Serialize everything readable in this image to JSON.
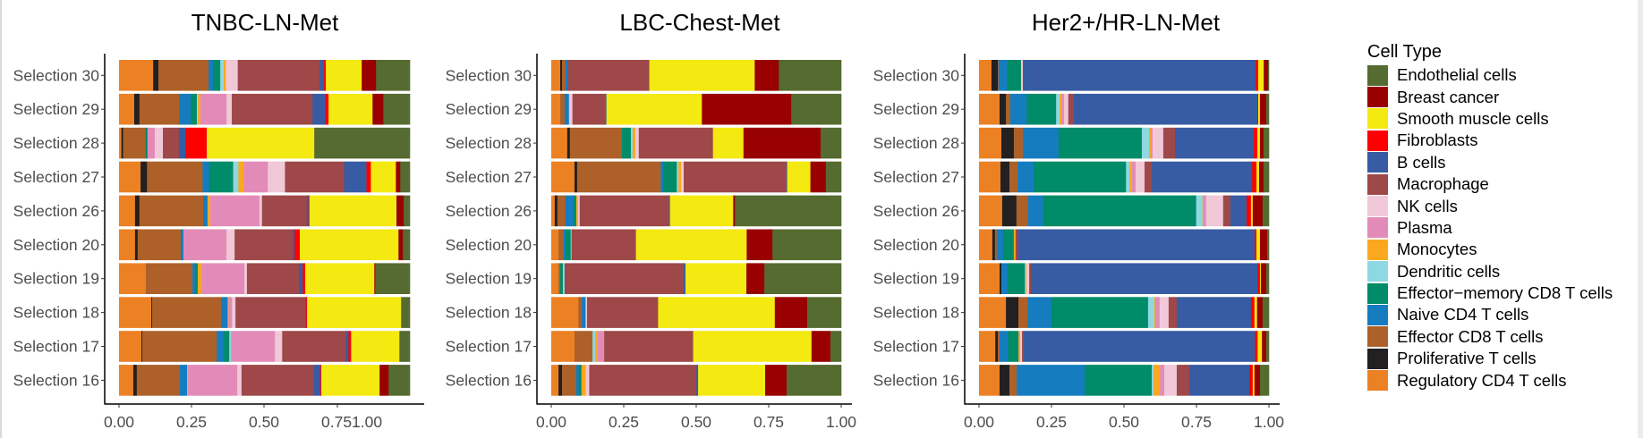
{
  "legend": {
    "title": "Cell Type",
    "items": [
      {
        "key": "endo",
        "label": "Endothelial cells",
        "color": "#556B2F"
      },
      {
        "key": "breast",
        "label": "Breast cancer",
        "color": "#990000"
      },
      {
        "key": "smooth",
        "label": "Smooth muscle cells",
        "color": "#F4E911"
      },
      {
        "key": "fib",
        "label": "Fibroblasts",
        "color": "#FF0000"
      },
      {
        "key": "bcell",
        "label": "B cells",
        "color": "#375CA3"
      },
      {
        "key": "macro",
        "label": "Macrophage",
        "color": "#9E4849"
      },
      {
        "key": "nk",
        "label": "NK cells",
        "color": "#F0C8D8"
      },
      {
        "key": "plasma",
        "label": "Plasma",
        "color": "#E38BB8"
      },
      {
        "key": "mono",
        "label": "Monocytes",
        "color": "#FCA81E"
      },
      {
        "key": "dend",
        "label": "Dendritic cells",
        "color": "#8ED8E2"
      },
      {
        "key": "em",
        "label": "Effector−memory CD8 T cells",
        "color": "#008B69"
      },
      {
        "key": "naive",
        "label": "Naive CD4 T cells",
        "color": "#167CC0"
      },
      {
        "key": "eff",
        "label": "Effector CD8 T cells",
        "color": "#AD6129"
      },
      {
        "key": "prolif",
        "label": "Proliferative T cells",
        "color": "#222020"
      },
      {
        "key": "reg",
        "label": "Regulatory CD4 T cells",
        "color": "#EC8124"
      }
    ]
  },
  "chart_data": [
    {
      "type": "bar",
      "orientation": "horizontal",
      "stacked": true,
      "title": "TNBC-LN-Met",
      "xlabel": "",
      "ylabel": "",
      "xlim": [
        0,
        1
      ],
      "x_tick_labels": [
        "0.00",
        "0.25",
        "0.50",
        "0.751.00"
      ],
      "stack_order": [
        "reg",
        "prolif",
        "eff",
        "naive",
        "em",
        "dend",
        "mono",
        "plasma",
        "nk",
        "macro",
        "bcell",
        "fib",
        "smooth",
        "breast",
        "endo"
      ],
      "categories": [
        "Selection 30",
        "Selection 29",
        "Selection 28",
        "Selection 27",
        "Selection 26",
        "Selection 20",
        "Selection 19",
        "Selection 18",
        "Selection 17",
        "Selection 16"
      ],
      "rows": [
        {
          "reg": 0.117,
          "prolif": 0.018,
          "eff": 0.172,
          "naive": 0.015,
          "em": 0.025,
          "dend": 0.012,
          "mono": 0.007,
          "plasma": 0,
          "nk": 0.041,
          "macro": 0.281,
          "bcell": 0.015,
          "fib": 0.006,
          "smooth": 0.123,
          "breast": 0.049,
          "endo": 0.116
        },
        {
          "reg": 0.052,
          "prolif": 0.018,
          "eff": 0.136,
          "naive": 0.04,
          "em": 0.021,
          "dend": 0.004,
          "mono": 0.008,
          "plasma": 0.09,
          "nk": 0.018,
          "macro": 0.277,
          "bcell": 0.043,
          "fib": 0.012,
          "smooth": 0.151,
          "breast": 0.037,
          "endo": 0.091
        },
        {
          "reg": 0.008,
          "prolif": 0.006,
          "eff": 0.077,
          "naive": 0,
          "em": 0.007,
          "dend": 0,
          "mono": 0,
          "plasma": 0.025,
          "nk": 0.028,
          "macro": 0.055,
          "bcell": 0.022,
          "fib": 0.074,
          "smooth": 0.37,
          "breast": 0,
          "endo": 0.329
        },
        {
          "reg": 0.074,
          "prolif": 0.022,
          "eff": 0.191,
          "naive": 0.022,
          "em": 0.083,
          "dend": 0.018,
          "mono": 0.018,
          "plasma": 0.083,
          "nk": 0.059,
          "macro": 0.203,
          "bcell": 0.077,
          "fib": 0.015,
          "smooth": 0.086,
          "breast": 0.015,
          "endo": 0.033
        },
        {
          "reg": 0.055,
          "prolif": 0.015,
          "eff": 0.219,
          "naive": 0.015,
          "em": 0,
          "dend": 0,
          "mono": 0.009,
          "plasma": 0.169,
          "nk": 0.009,
          "macro": 0.154,
          "bcell": 0.006,
          "fib": 0.003,
          "smooth": 0.299,
          "breast": 0.025,
          "endo": 0.021
        },
        {
          "reg": 0.055,
          "prolif": 0.009,
          "eff": 0.148,
          "naive": 0.009,
          "em": 0,
          "dend": 0,
          "mono": 0,
          "plasma": 0.148,
          "nk": 0.028,
          "macro": 0.2,
          "bcell": 0.006,
          "fib": 0.018,
          "smooth": 0.339,
          "breast": 0.015,
          "endo": 0.024
        },
        {
          "reg": 0.092,
          "prolif": 0,
          "eff": 0.16,
          "naive": 0.009,
          "em": 0.009,
          "dend": 0,
          "mono": 0.012,
          "plasma": 0.148,
          "nk": 0.009,
          "macro": 0.179,
          "bcell": 0.012,
          "fib": 0.009,
          "smooth": 0.237,
          "breast": 0.003,
          "endo": 0.119
        },
        {
          "reg": 0.111,
          "prolif": 0.003,
          "eff": 0.237,
          "naive": 0.022,
          "em": 0,
          "dend": 0,
          "mono": 0.003,
          "plasma": 0.012,
          "nk": 0.012,
          "macro": 0.24,
          "bcell": 0.003,
          "fib": 0.003,
          "smooth": 0.323,
          "breast": 0,
          "endo": 0.03
        },
        {
          "reg": 0.077,
          "prolif": 0.003,
          "eff": 0.256,
          "naive": 0.025,
          "em": 0.018,
          "dend": 0.006,
          "mono": 0,
          "plasma": 0.151,
          "nk": 0.025,
          "macro": 0.219,
          "bcell": 0.009,
          "fib": 0.009,
          "smooth": 0.166,
          "breast": 0,
          "endo": 0.036
        },
        {
          "reg": 0.049,
          "prolif": 0.012,
          "eff": 0.148,
          "naive": 0.025,
          "em": 0,
          "dend": 0.003,
          "mono": 0,
          "plasma": 0.169,
          "nk": 0.015,
          "macro": 0.249,
          "bcell": 0.022,
          "fib": 0.003,
          "smooth": 0.2,
          "breast": 0.031,
          "endo": 0.073
        }
      ]
    },
    {
      "type": "bar",
      "orientation": "horizontal",
      "stacked": true,
      "title": "LBC-Chest-Met",
      "xlabel": "",
      "ylabel": "",
      "xlim": [
        0,
        1
      ],
      "x_tick_labels": [
        "0.00",
        "0.25",
        "0.50",
        "0.75",
        "1.00"
      ],
      "stack_order": [
        "reg",
        "prolif",
        "eff",
        "naive",
        "em",
        "dend",
        "mono",
        "plasma",
        "nk",
        "macro",
        "bcell",
        "fib",
        "smooth",
        "breast",
        "endo"
      ],
      "categories": [
        "Selection 30",
        "Selection 29",
        "Selection 28",
        "Selection 27",
        "Selection 26",
        "Selection 20",
        "Selection 19",
        "Selection 18",
        "Selection 17",
        "Selection 16"
      ],
      "rows": [
        {
          "reg": 0.031,
          "prolif": 0.006,
          "eff": 0.012,
          "naive": 0.009,
          "em": 0,
          "dend": 0,
          "mono": 0,
          "plasma": 0,
          "nk": 0,
          "macro": 0.28,
          "bcell": 0,
          "fib": 0,
          "smooth": 0.363,
          "breast": 0.083,
          "endo": 0.215
        },
        {
          "reg": 0.031,
          "prolif": 0,
          "eff": 0.015,
          "naive": 0.015,
          "em": 0,
          "dend": 0,
          "mono": 0,
          "plasma": 0,
          "nk": 0.012,
          "macro": 0.114,
          "bcell": 0.003,
          "fib": 0,
          "smooth": 0.329,
          "breast": 0.308,
          "endo": 0.172
        },
        {
          "reg": 0.055,
          "prolif": 0.009,
          "eff": 0.179,
          "naive": 0,
          "em": 0.031,
          "dend": 0.006,
          "mono": 0.009,
          "plasma": 0,
          "nk": 0.012,
          "macro": 0.255,
          "bcell": 0,
          "fib": 0,
          "smooth": 0.105,
          "breast": 0.265,
          "endo": 0.071
        },
        {
          "reg": 0.08,
          "prolif": 0.009,
          "eff": 0.288,
          "naive": 0.009,
          "em": 0.046,
          "dend": 0.006,
          "mono": 0.009,
          "plasma": 0,
          "nk": 0.009,
          "macro": 0.353,
          "bcell": 0.003,
          "fib": 0,
          "smooth": 0.08,
          "breast": 0.053,
          "endo": 0.053
        },
        {
          "reg": 0.012,
          "prolif": 0.009,
          "eff": 0.028,
          "naive": 0.028,
          "em": 0.009,
          "dend": 0,
          "mono": 0.006,
          "plasma": 0,
          "nk": 0.006,
          "macro": 0.308,
          "bcell": 0.003,
          "fib": 0,
          "smooth": 0.218,
          "breast": 0.006,
          "endo": 0.366
        },
        {
          "reg": 0.025,
          "prolif": 0,
          "eff": 0.018,
          "naive": 0.006,
          "em": 0.018,
          "dend": 0.003,
          "mono": 0,
          "plasma": 0,
          "nk": 0,
          "macro": 0.222,
          "bcell": 0,
          "fib": 0,
          "smooth": 0.382,
          "breast": 0.089,
          "endo": 0.237
        },
        {
          "reg": 0.025,
          "prolif": 0,
          "eff": 0.006,
          "naive": 0,
          "em": 0.009,
          "dend": 0.006,
          "mono": 0,
          "plasma": 0,
          "nk": 0,
          "macro": 0.411,
          "bcell": 0.006,
          "fib": 0,
          "smooth": 0.21,
          "breast": 0.062,
          "endo": 0.265
        },
        {
          "reg": 0.093,
          "prolif": 0,
          "eff": 0.012,
          "naive": 0.012,
          "em": 0,
          "dend": 0,
          "mono": 0,
          "plasma": 0.003,
          "nk": 0.003,
          "macro": 0.244,
          "bcell": 0,
          "fib": 0,
          "smooth": 0.401,
          "breast": 0.111,
          "endo": 0.117
        },
        {
          "reg": 0.08,
          "prolif": 0,
          "eff": 0.062,
          "naive": 0,
          "em": 0,
          "dend": 0.009,
          "mono": 0.009,
          "plasma": 0.022,
          "nk": 0,
          "macro": 0.306,
          "bcell": 0,
          "fib": 0,
          "smooth": 0.407,
          "breast": 0.065,
          "endo": 0.037
        },
        {
          "reg": 0.025,
          "prolif": 0.012,
          "eff": 0.049,
          "naive": 0.009,
          "em": 0.009,
          "dend": 0,
          "mono": 0.015,
          "plasma": 0,
          "nk": 0.012,
          "macro": 0.369,
          "bcell": 0.006,
          "fib": 0,
          "smooth": 0.231,
          "breast": 0.074,
          "endo": 0.188
        }
      ]
    },
    {
      "type": "bar",
      "orientation": "horizontal",
      "stacked": true,
      "title": "Her2+/HR-LN-Met",
      "xlabel": "",
      "ylabel": "",
      "xlim": [
        0,
        1
      ],
      "x_tick_labels": [
        "0.00",
        "0.25",
        "0.50",
        "0.75",
        "1.00"
      ],
      "stack_order": [
        "reg",
        "prolif",
        "eff",
        "naive",
        "em",
        "dend",
        "mono",
        "plasma",
        "nk",
        "macro",
        "bcell",
        "fib",
        "smooth",
        "breast",
        "endo"
      ],
      "categories": [
        "Selection 30",
        "Selection 29",
        "Selection 28",
        "Selection 27",
        "Selection 26",
        "Selection 20",
        "Selection 19",
        "Selection 18",
        "Selection 17",
        "Selection 16"
      ],
      "rows": [
        {
          "reg": 0.043,
          "prolif": 0.022,
          "eff": 0.002,
          "naive": 0.029,
          "em": 0.049,
          "dend": 0,
          "mono": 0,
          "plasma": 0,
          "nk": 0.006,
          "macro": 0.003,
          "bcell": 0.799,
          "fib": 0.009,
          "smooth": 0.019,
          "breast": 0.015,
          "endo": 0.003
        },
        {
          "reg": 0.071,
          "prolif": 0.022,
          "eff": 0.015,
          "naive": 0.056,
          "em": 0.102,
          "dend": 0.012,
          "mono": 0.006,
          "plasma": 0.009,
          "nk": 0.015,
          "macro": 0.019,
          "bcell": 0.633,
          "fib": 0.003,
          "smooth": 0.006,
          "breast": 0.022,
          "endo": 0.009
        },
        {
          "reg": 0.077,
          "prolif": 0.043,
          "eff": 0.031,
          "naive": 0.123,
          "em": 0.287,
          "dend": 0.025,
          "mono": 0.006,
          "plasma": 0.006,
          "nk": 0.037,
          "macro": 0.04,
          "bcell": 0.272,
          "fib": 0.012,
          "smooth": 0.009,
          "breast": 0.012,
          "endo": 0.019
        },
        {
          "reg": 0.074,
          "prolif": 0.031,
          "eff": 0.028,
          "naive": 0.056,
          "em": 0.318,
          "dend": 0.012,
          "mono": 0.009,
          "plasma": 0.012,
          "nk": 0.031,
          "macro": 0.025,
          "bcell": 0.346,
          "fib": 0.015,
          "smooth": 0.009,
          "breast": 0.015,
          "endo": 0.019
        },
        {
          "reg": 0.08,
          "prolif": 0.049,
          "eff": 0.04,
          "naive": 0.052,
          "em": 0.528,
          "dend": 0.022,
          "mono": 0.003,
          "plasma": 0.009,
          "nk": 0.059,
          "macro": 0.025,
          "bcell": 0.056,
          "fib": 0.015,
          "smooth": 0.006,
          "breast": 0.034,
          "endo": 0.022
        },
        {
          "reg": 0.046,
          "prolif": 0.009,
          "eff": 0.006,
          "naive": 0.022,
          "em": 0.037,
          "dend": 0,
          "mono": 0.006,
          "plasma": 0,
          "nk": 0,
          "macro": 0.009,
          "bcell": 0.815,
          "fib": 0.006,
          "smooth": 0.012,
          "breast": 0.025,
          "endo": 0.006
        },
        {
          "reg": 0.071,
          "prolif": 0.006,
          "eff": 0,
          "naive": 0.022,
          "em": 0.059,
          "dend": 0.003,
          "mono": 0.003,
          "plasma": 0,
          "nk": 0.009,
          "macro": 0.006,
          "bcell": 0.781,
          "fib": 0.009,
          "smooth": 0.003,
          "breast": 0.019,
          "endo": 0.009
        },
        {
          "reg": 0.093,
          "prolif": 0.043,
          "eff": 0.031,
          "naive": 0.083,
          "em": 0.333,
          "dend": 0.022,
          "mono": 0.003,
          "plasma": 0.015,
          "nk": 0.031,
          "macro": 0.028,
          "bcell": 0.256,
          "fib": 0.012,
          "smooth": 0.009,
          "breast": 0.019,
          "endo": 0.022
        },
        {
          "reg": 0.056,
          "prolif": 0.009,
          "eff": 0.006,
          "naive": 0.028,
          "em": 0.037,
          "dend": 0,
          "mono": 0.006,
          "plasma": 0,
          "nk": 0.006,
          "macro": 0.006,
          "bcell": 0.796,
          "fib": 0.009,
          "smooth": 0.015,
          "breast": 0.015,
          "endo": 0.009
        },
        {
          "reg": 0.071,
          "prolif": 0.034,
          "eff": 0.025,
          "naive": 0.235,
          "em": 0.231,
          "dend": 0.006,
          "mono": 0.022,
          "plasma": 0.015,
          "nk": 0.043,
          "macro": 0.043,
          "bcell": 0.207,
          "fib": 0.012,
          "smooth": 0.006,
          "breast": 0.019,
          "endo": 0.031
        }
      ]
    }
  ]
}
